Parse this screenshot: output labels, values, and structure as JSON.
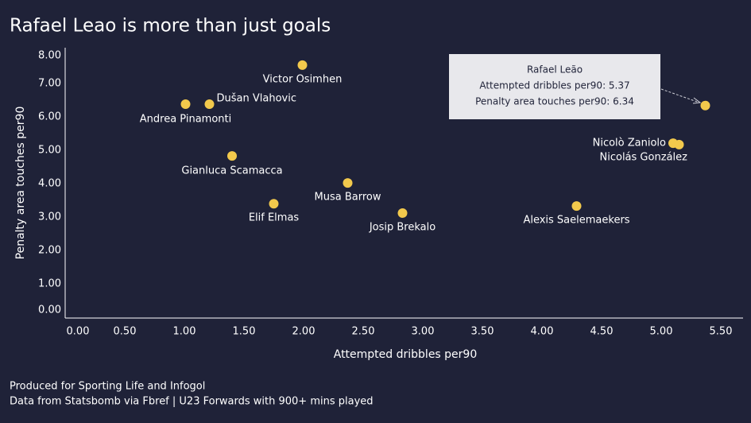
{
  "chart_data": {
    "type": "scatter",
    "title": "Rafael Leao is more than just goals",
    "x_label": "Attempted dribbles per90",
    "y_label": "Penalty area touches per90",
    "footnotes": [
      "Produced for Sporting Life and Infogol",
      "Data from Statsbomb via Fbref | U23 Forwards with 900+ mins played"
    ],
    "series": [
      {
        "color": "#f2c94c",
        "point_labels": [
          "Victor Osimhen",
          "Dušan Vlahovic",
          "Andrea Pinamonti",
          "Gianluca Scamacca",
          "Elif Elmas",
          "Musa Barrow",
          "Josip Brekalo",
          "Alexis Saelemaekers",
          "Nicolò Zaniolo",
          "Nicolás González",
          null
        ],
        "x": [
          1.99,
          1.21,
          1.01,
          1.4,
          1.75,
          2.37,
          2.83,
          4.29,
          5.1,
          5.15,
          5.37
        ],
        "values": [
          7.55,
          6.38,
          6.38,
          4.83,
          3.4,
          4.02,
          3.12,
          3.33,
          5.21,
          5.17,
          6.34
        ]
      }
    ],
    "annotation": {
      "lines": [
        "Rafael Leão",
        "Attempted dribbles per90: 5.37",
        "Penalty area touches per90: 6.34"
      ]
    },
    "xlim": [
      0,
      5.5
    ],
    "ylim": [
      0,
      8
    ],
    "xticks": [
      {
        "value": 0,
        "label": "0.00"
      },
      {
        "value": 0.5,
        "label": "0.50"
      },
      {
        "value": 1,
        "label": "1.00"
      },
      {
        "value": 1.5,
        "label": "1.50"
      },
      {
        "value": 2,
        "label": "2.00"
      },
      {
        "value": 2.5,
        "label": "2.50"
      },
      {
        "value": 3,
        "label": "3.00"
      },
      {
        "value": 3.5,
        "label": "3.50"
      },
      {
        "value": 4,
        "label": "4.00"
      },
      {
        "value": 4.5,
        "label": "4.50"
      },
      {
        "value": 5,
        "label": "5.00"
      },
      {
        "value": 5.5,
        "label": "5.50"
      }
    ],
    "yticks": [
      {
        "value": 0,
        "label": "0.00"
      },
      {
        "value": 1,
        "label": "1.00"
      },
      {
        "value": 2,
        "label": "2.00"
      },
      {
        "value": 3,
        "label": "3.00"
      },
      {
        "value": 4,
        "label": "4.00"
      },
      {
        "value": 5,
        "label": "5.00"
      },
      {
        "value": 6,
        "label": "6.00"
      },
      {
        "value": 7,
        "label": "7.00"
      },
      {
        "value": 8,
        "label": "8.00"
      }
    ]
  }
}
